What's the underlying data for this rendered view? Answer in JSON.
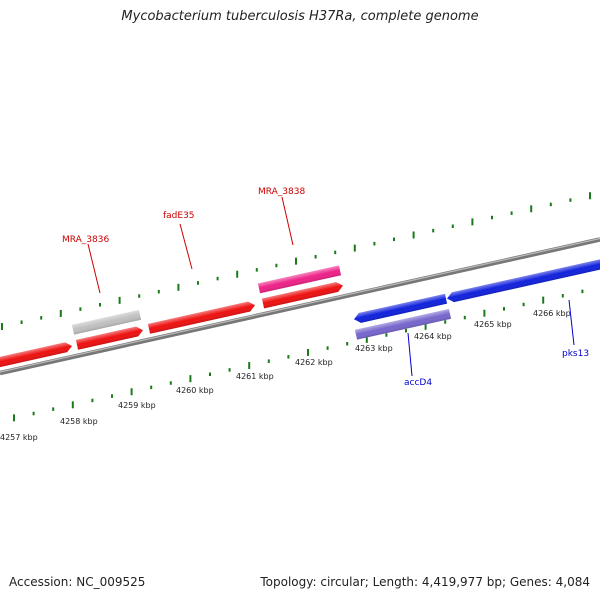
{
  "title": "Mycobacterium tuberculosis H37Ra, complete genome",
  "footer": {
    "accession": "Accession: NC_009525",
    "topology": "Topology: circular; Length: 4,419,977 bp; Genes: 4,084"
  },
  "colors": {
    "backbone": "#888888",
    "ticks": "#1a7a1a",
    "plus_gene": "#ee1111",
    "minus_gene": "#1122dd",
    "pseudo": "#c0c0c0",
    "pink": "#ee2288",
    "purple": "#7766cc",
    "label_red": "#cc0000",
    "label_blue": "#0000cc"
  },
  "scale_ticks": [
    "4257 kbp",
    "4258 kbp",
    "4259 kbp",
    "4260 kbp",
    "4261 kbp",
    "4262 kbp",
    "4263 kbp",
    "4264 kbp",
    "4265 kbp",
    "4266 kbp"
  ],
  "gene_labels": [
    {
      "text": "MRA_3836",
      "color": "label_red"
    },
    {
      "text": "fadE35",
      "color": "label_red"
    },
    {
      "text": "MRA_3838",
      "color": "label_red"
    },
    {
      "text": "accD4",
      "color": "label_blue"
    },
    {
      "text": "pks13",
      "color": "label_blue"
    }
  ]
}
